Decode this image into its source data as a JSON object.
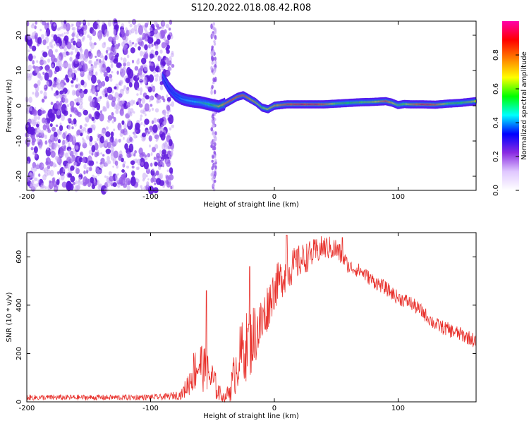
{
  "title": "S120.2022.018.08.42.R08",
  "chart_data": [
    {
      "type": "heatmap",
      "xlabel": "Height of straight line (km)",
      "ylabel": "Frequency (Hz)",
      "xlim": [
        -200,
        163
      ],
      "ylim": [
        -24,
        24
      ],
      "xticks": [
        -200,
        -100,
        0,
        100
      ],
      "yticks": [
        -20,
        -10,
        0,
        10,
        20
      ],
      "colorbar": {
        "label": "Normalized spectral amplitude",
        "range": [
          0,
          1
        ],
        "ticks": [
          "0.0",
          "0.2",
          "0.4",
          "0.6",
          "0.8"
        ],
        "colors": [
          "#ffffff",
          "#e0c8ff",
          "#8a2be2",
          "#0000ff",
          "#00ffff",
          "#00ff00",
          "#ffff00",
          "#ff8000",
          "#ff0000",
          "#ff00aa"
        ]
      },
      "noise_region": {
        "x_from": -200,
        "x_to": -82
      },
      "interference_stripe": {
        "x": -49
      },
      "ridge": {
        "x": [
          -90,
          -85,
          -80,
          -75,
          -70,
          -65,
          -60,
          -55,
          -50,
          -45,
          -40,
          -35,
          -30,
          -25,
          -20,
          -15,
          -10,
          -5,
          0,
          10,
          20,
          30,
          40,
          50,
          60,
          70,
          80,
          90,
          95,
          100,
          105,
          110,
          120,
          130,
          140,
          150,
          163
        ],
        "y": [
          8,
          5,
          3,
          2,
          1.5,
          1.2,
          1,
          0.6,
          0.2,
          -0.2,
          0.5,
          1.5,
          2.5,
          3,
          2,
          1,
          -0.5,
          -1,
          0,
          0.4,
          0.4,
          0.4,
          0.4,
          0.6,
          0.8,
          1,
          1.1,
          1.3,
          0.9,
          0.2,
          0.5,
          0.4,
          0.4,
          0.3,
          0.6,
          0.8,
          1.3
        ],
        "amplitude": [
          0.2,
          0.25,
          0.3,
          0.35,
          0.4,
          0.4,
          0.45,
          0.5,
          0.55,
          0.7,
          0.8,
          0.85,
          0.85,
          0.85,
          0.8,
          0.75,
          0.6,
          0.7,
          0.75,
          0.85,
          0.9,
          0.9,
          0.85,
          0.6,
          0.55,
          0.6,
          0.65,
          0.85,
          0.75,
          0.6,
          0.6,
          0.75,
          0.9,
          0.85,
          0.6,
          0.55,
          0.7
        ]
      }
    },
    {
      "type": "line",
      "xlabel": "Height of straight line (km)",
      "ylabel": "SNR (10 * v/v)",
      "xlim": [
        -200,
        163
      ],
      "ylim": [
        0,
        700
      ],
      "xticks": [
        -200,
        -100,
        0,
        100
      ],
      "yticks": [
        0,
        200,
        400,
        600
      ],
      "color": "#e8302b",
      "envelope": {
        "x": [
          -200,
          -160,
          -120,
          -90,
          -75,
          -70,
          -65,
          -60,
          -55,
          -50,
          -45,
          -40,
          -35,
          -30,
          -25,
          -20,
          -15,
          -10,
          -5,
          0,
          10,
          20,
          30,
          40,
          50,
          55,
          60,
          70,
          80,
          90,
          100,
          110,
          120,
          130,
          140,
          150,
          160,
          163
        ],
        "mean": [
          18,
          18,
          18,
          20,
          30,
          70,
          130,
          160,
          120,
          90,
          40,
          15,
          60,
          160,
          220,
          240,
          290,
          320,
          400,
          470,
          540,
          580,
          610,
          640,
          630,
          600,
          560,
          540,
          500,
          470,
          430,
          410,
          370,
          320,
          300,
          280,
          260,
          240
        ],
        "amp": [
          12,
          12,
          12,
          12,
          20,
          50,
          90,
          110,
          90,
          80,
          40,
          15,
          60,
          120,
          140,
          150,
          130,
          120,
          100,
          90,
          80,
          70,
          60,
          50,
          50,
          40,
          30,
          30,
          30,
          30,
          30,
          30,
          30,
          30,
          30,
          30,
          30,
          35
        ]
      },
      "peaks": [
        {
          "x": 10,
          "y": 690
        },
        {
          "x": 55,
          "y": 680
        },
        {
          "x": -55,
          "y": 460
        },
        {
          "x": -20,
          "y": 560
        }
      ]
    }
  ]
}
